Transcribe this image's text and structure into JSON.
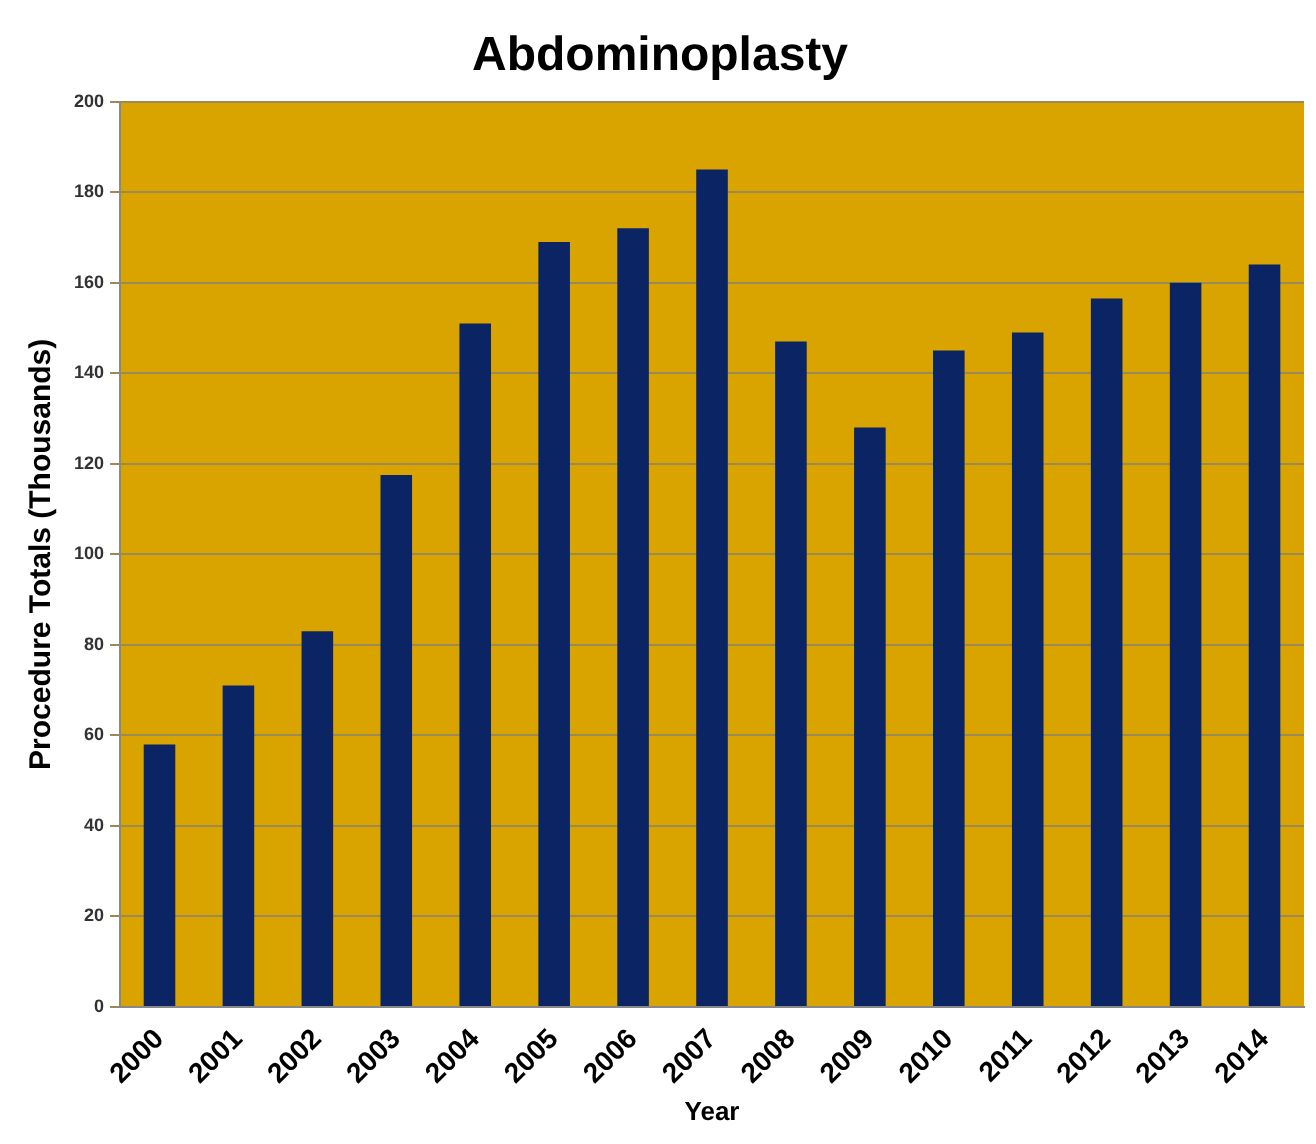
{
  "chart_data": {
    "type": "bar",
    "title": "Abdominoplasty",
    "xlabel": "Year",
    "ylabel": "Procedure Totals (Thousands)",
    "categories": [
      "2000",
      "2001",
      "2002",
      "2003",
      "2004",
      "2005",
      "2006",
      "2007",
      "2008",
      "2009",
      "2010",
      "2011",
      "2012",
      "2013",
      "2014"
    ],
    "values": [
      58,
      71,
      83,
      117.5,
      151,
      169,
      172,
      185,
      147,
      128,
      145,
      149,
      156.5,
      160,
      164
    ],
    "color": "#0b2463",
    "ylim": [
      0,
      200
    ],
    "yticks": [
      0,
      20,
      40,
      60,
      80,
      100,
      120,
      140,
      160,
      180,
      200
    ],
    "grid": "y",
    "legend": false
  }
}
